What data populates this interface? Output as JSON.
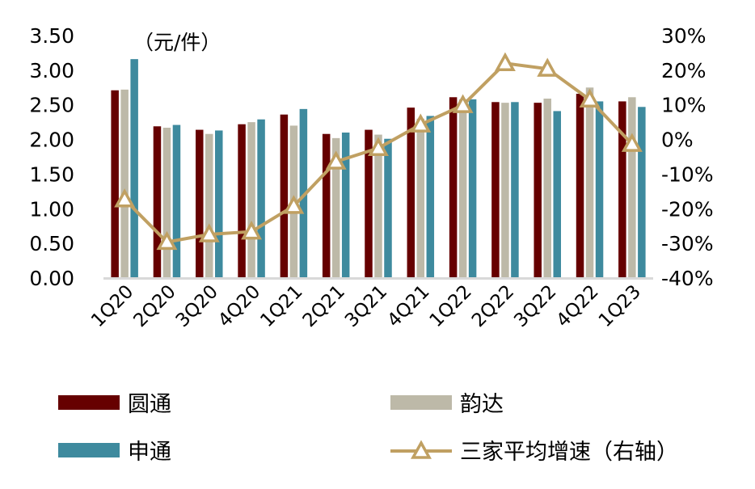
{
  "chart_data": {
    "type": "bar",
    "unit_label": "（元/件）",
    "categories": [
      "1Q20",
      "2Q20",
      "3Q20",
      "4Q20",
      "1Q21",
      "2Q21",
      "3Q21",
      "4Q21",
      "1Q22",
      "2Q22",
      "3Q22",
      "4Q22",
      "1Q23"
    ],
    "y_left": {
      "ylim": [
        0,
        3.5
      ],
      "ticks": [
        "0.00",
        "0.50",
        "1.00",
        "1.50",
        "2.00",
        "2.50",
        "3.00",
        "3.50"
      ]
    },
    "y_right": {
      "ylim": [
        -40,
        30
      ],
      "ticks": [
        "-40%",
        "-30%",
        "-20%",
        "-10%",
        "0%",
        "10%",
        "20%",
        "30%"
      ]
    },
    "grid": false,
    "legend_position": "bottom",
    "series": [
      {
        "name": "圆通",
        "type": "bar",
        "axis": "left",
        "color": "#660000",
        "values": [
          2.71,
          2.19,
          2.14,
          2.22,
          2.36,
          2.08,
          2.14,
          2.46,
          2.61,
          2.54,
          2.53,
          2.66,
          2.55
        ]
      },
      {
        "name": "韵达",
        "type": "bar",
        "axis": "left",
        "color": "#BDB9A8",
        "values": [
          2.72,
          2.17,
          2.08,
          2.25,
          2.2,
          2.02,
          2.07,
          2.3,
          2.58,
          2.53,
          2.59,
          2.75,
          2.61
        ]
      },
      {
        "name": "申通",
        "type": "bar",
        "axis": "left",
        "color": "#3E8A9E",
        "values": [
          3.16,
          2.21,
          2.13,
          2.29,
          2.44,
          2.1,
          2.01,
          2.34,
          2.58,
          2.54,
          2.41,
          2.55,
          2.47
        ]
      },
      {
        "name": "三家平均增速（右轴）",
        "type": "line",
        "axis": "right",
        "color": "#C0A062",
        "marker": "triangle",
        "values": [
          -17.3,
          -29.6,
          -27.4,
          -26.6,
          -19.2,
          -6.4,
          -2.5,
          4.3,
          9.9,
          22.0,
          20.4,
          11.5,
          -1.3
        ]
      }
    ]
  }
}
